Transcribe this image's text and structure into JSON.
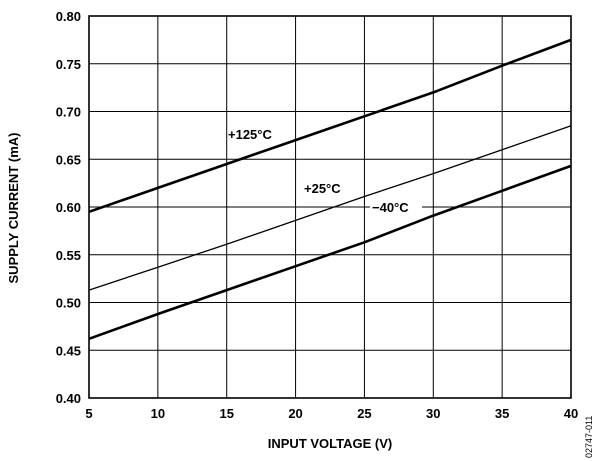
{
  "chart_data": {
    "type": "line",
    "xlabel": "INPUT VOLTAGE (V)",
    "ylabel": "SUPPLY CURRENT (mA)",
    "xlim": [
      5,
      40
    ],
    "ylim": [
      0.4,
      0.8
    ],
    "x_ticks": [
      5,
      10,
      15,
      20,
      25,
      30,
      35,
      40
    ],
    "y_ticks": [
      0.4,
      0.45,
      0.5,
      0.55,
      0.6,
      0.65,
      0.7,
      0.75,
      0.8
    ],
    "grid": true,
    "figure_id": "02747-011",
    "series": [
      {
        "name": "+125°C",
        "x": [
          5,
          10,
          15,
          20,
          25,
          30,
          35,
          40
        ],
        "y": [
          0.595,
          0.62,
          0.645,
          0.67,
          0.695,
          0.72,
          0.748,
          0.775
        ]
      },
      {
        "name": "+25°C",
        "x": [
          5,
          10,
          15,
          20,
          25,
          30,
          35,
          40
        ],
        "y": [
          0.513,
          0.537,
          0.561,
          0.586,
          0.611,
          0.635,
          0.66,
          0.685
        ]
      },
      {
        "name": "−40°C",
        "x": [
          5,
          10,
          15,
          20,
          25,
          30,
          35,
          40
        ],
        "y": [
          0.462,
          0.488,
          0.513,
          0.538,
          0.563,
          0.591,
          0.617,
          0.643
        ]
      }
    ]
  }
}
